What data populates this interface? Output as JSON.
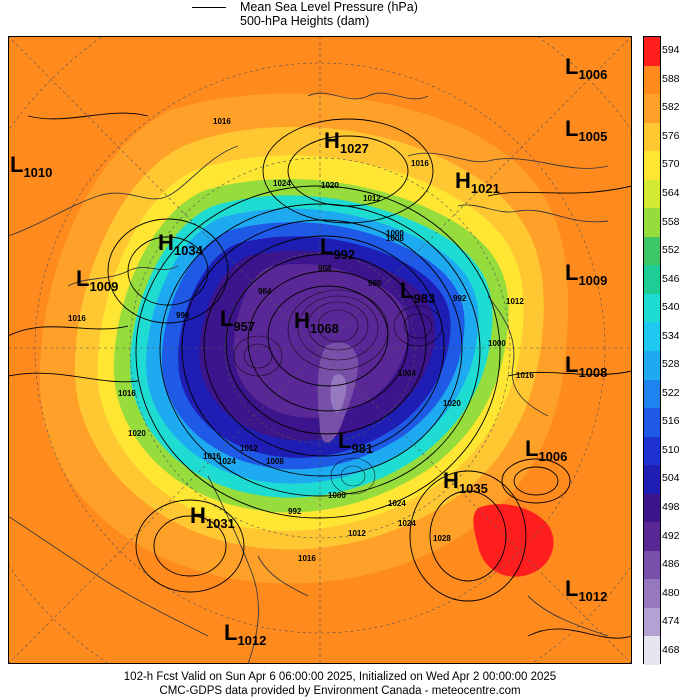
{
  "legend": {
    "line1": "Mean Sea Level Pressure (hPa)",
    "line2": "500-hPa Heights (dam)"
  },
  "colorbar": {
    "levels": [
      "594",
      "588",
      "582",
      "576",
      "570",
      "564",
      "558",
      "552",
      "546",
      "540",
      "534",
      "528",
      "522",
      "516",
      "510",
      "504",
      "498",
      "492",
      "486",
      "480",
      "474",
      "468"
    ],
    "colors": [
      "#ff1e1e",
      "#ff8a1e",
      "#ffa028",
      "#ffc832",
      "#ffe632",
      "#d2eb32",
      "#96dc3c",
      "#3cc864",
      "#1ecc96",
      "#1edcd2",
      "#1ec8f0",
      "#1eaaf0",
      "#1e82f0",
      "#1e5ae6",
      "#1e32d2",
      "#1e1eb4",
      "#3c148c",
      "#5a2896",
      "#7850aa",
      "#9678be",
      "#b4a0d2",
      "#e6e6f0"
    ]
  },
  "pressure_centers": [
    {
      "kind": "L",
      "value": "1006"
    },
    {
      "kind": "L",
      "value": "1005"
    },
    {
      "kind": "H",
      "value": "1027"
    },
    {
      "kind": "L",
      "value": "1010"
    },
    {
      "kind": "H",
      "value": "1021"
    },
    {
      "kind": "H",
      "value": "1034"
    },
    {
      "kind": "L",
      "value": "992"
    },
    {
      "kind": "L",
      "value": "1009"
    },
    {
      "kind": "L",
      "value": "1009"
    },
    {
      "kind": "L",
      "value": "983"
    },
    {
      "kind": "L",
      "value": "957"
    },
    {
      "kind": "H",
      "value": "1068"
    },
    {
      "kind": "L",
      "value": "1008"
    },
    {
      "kind": "L",
      "value": "981"
    },
    {
      "kind": "L",
      "value": "1006"
    },
    {
      "kind": "H",
      "value": "1035"
    },
    {
      "kind": "H",
      "value": "1031"
    },
    {
      "kind": "L",
      "value": "1012"
    },
    {
      "kind": "L",
      "value": "1012"
    }
  ],
  "isobar_labels": [
    "1016",
    "1024",
    "1020",
    "1012",
    "1016",
    "1008",
    "1000",
    "992",
    "1012",
    "1000",
    "1004",
    "1016",
    "1020",
    "1024",
    "1016",
    "1012",
    "1008",
    "1000",
    "992",
    "1016",
    "1020",
    "1024",
    "1028",
    "1024",
    "1016",
    "1016",
    "1012",
    "984",
    "968",
    "960",
    "996"
  ],
  "footer": {
    "line1": "102-h Fcst Valid on Sun Apr  6 06:00:00 2025, Initialized on Wed Apr  2 00:00:00 2025",
    "line2": "CMC-GDPS data provided by Environment Canada - meteocentre.com"
  }
}
